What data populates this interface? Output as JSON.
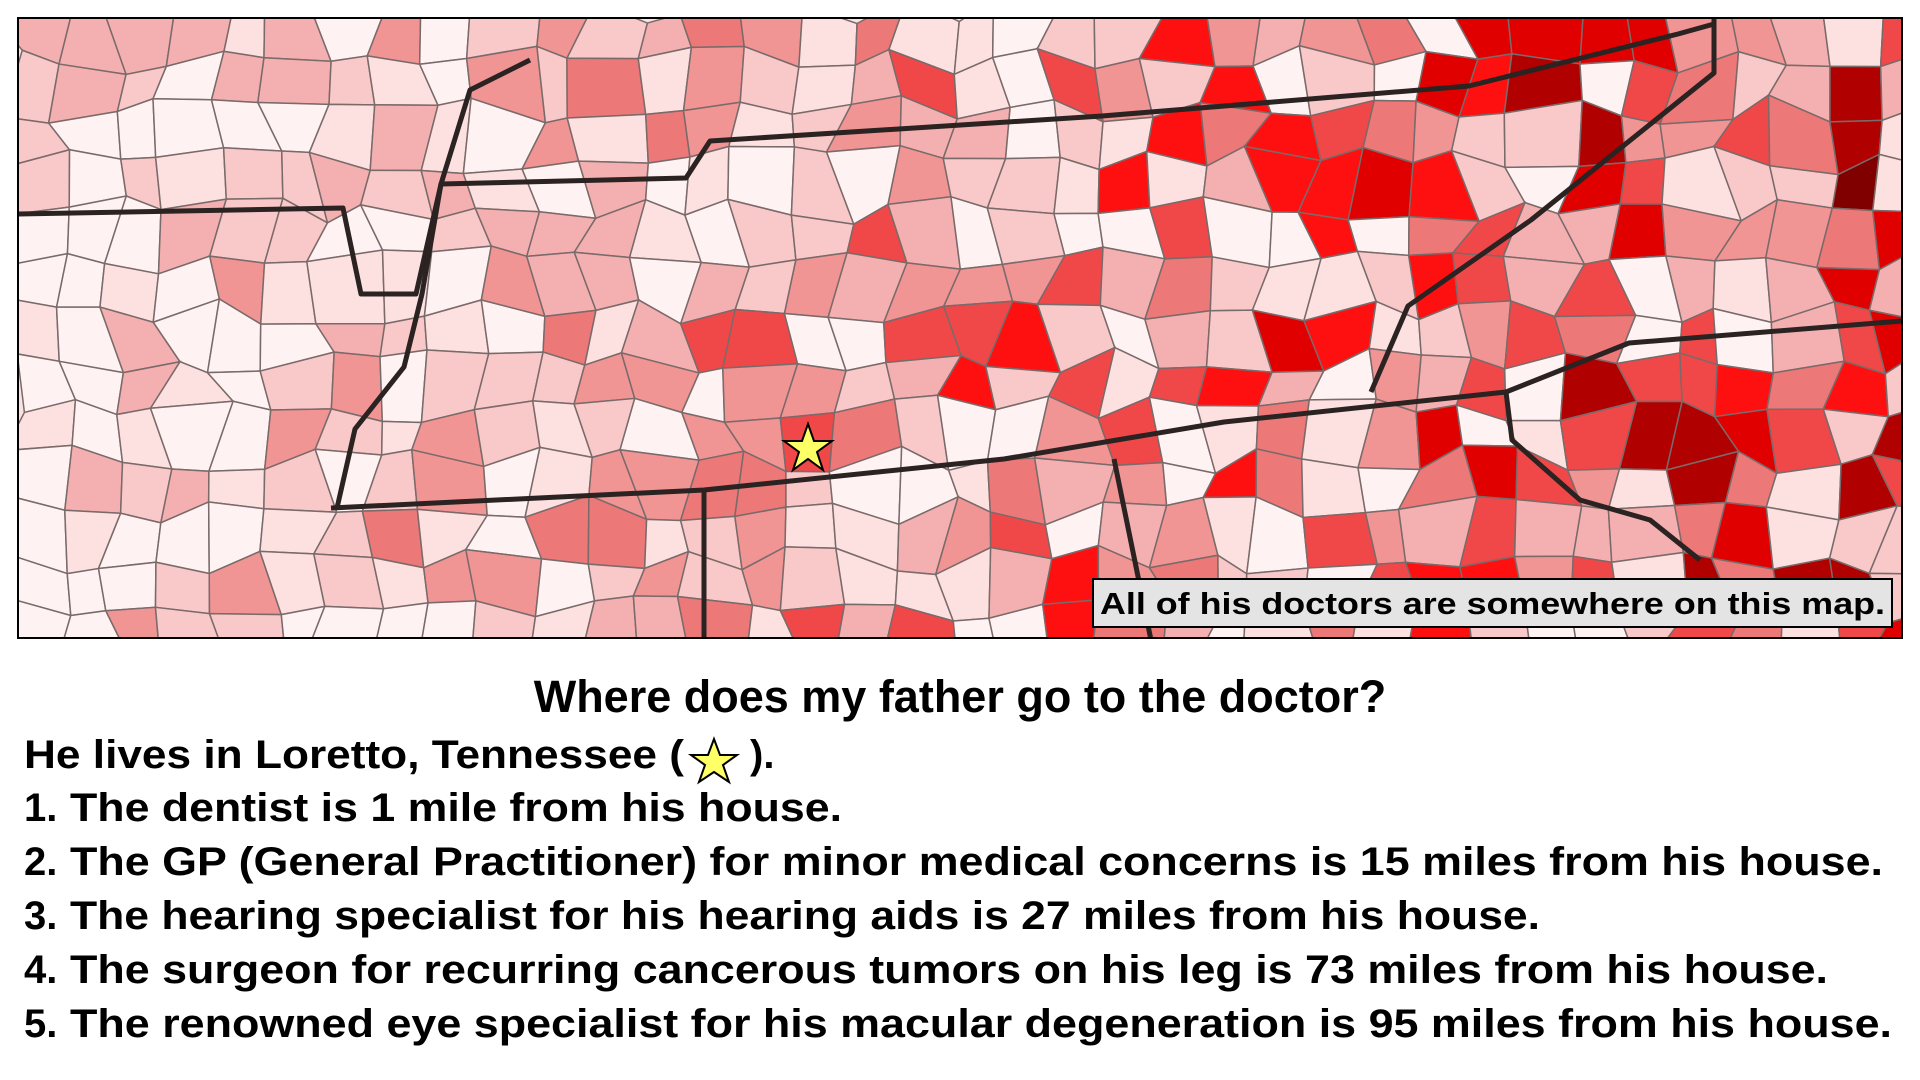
{
  "map": {
    "label": "All of his doctors are somewhere on this map."
  },
  "title": "Where does my father go to the doctor?",
  "intro": {
    "before": "He lives in Loretto, Tennessee (",
    "after": ")."
  },
  "items": [
    {
      "number": "1.",
      "text": "The dentist is 1 mile from his house."
    },
    {
      "number": "2.",
      "text": "The GP (General Practitioner) for minor medical concerns is 15 miles from his house."
    },
    {
      "number": "3.",
      "text": "The hearing specialist for his hearing aids is 27 miles from his house."
    },
    {
      "number": "4.",
      "text": "The surgeon for recurring cancerous tumors on his leg is 73 miles from his house."
    },
    {
      "number": "5.",
      "text": "The renowned eye specialist for his macular degeneration is 95 miles from his house."
    }
  ]
}
